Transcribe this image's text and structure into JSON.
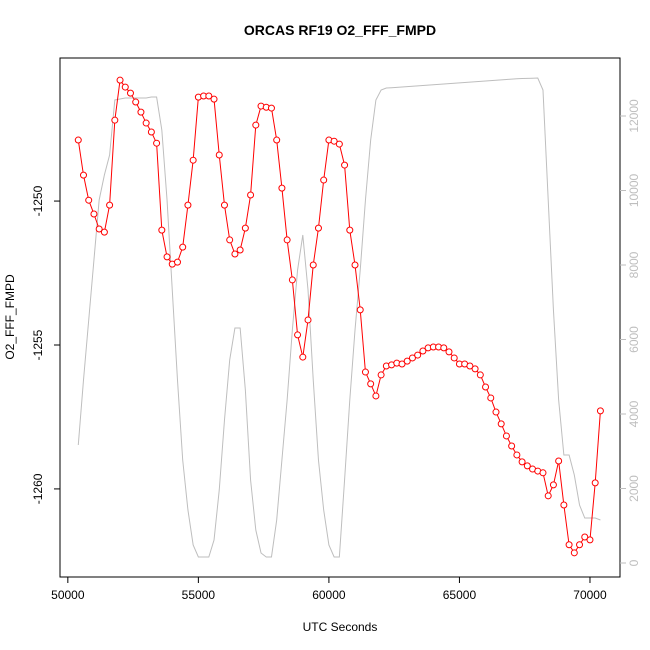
{
  "chart_data": {
    "type": "line",
    "title": "ORCAS RF19 O2_FFF_FMPD",
    "xlabel": "UTC Seconds",
    "ylabel": "O2_FFF_FMPD",
    "x": [
      50400,
      50600,
      50800,
      51000,
      51200,
      51400,
      51600,
      51800,
      52000,
      52200,
      52400,
      52600,
      52800,
      53000,
      53200,
      53400,
      53600,
      53800,
      54000,
      54200,
      54400,
      54600,
      54800,
      55000,
      55200,
      55400,
      55600,
      55800,
      56000,
      56200,
      56400,
      56600,
      56800,
      57000,
      57200,
      57400,
      57600,
      57800,
      58000,
      58200,
      58400,
      58600,
      58800,
      59000,
      59200,
      59400,
      59600,
      59800,
      60000,
      60200,
      60400,
      60600,
      60800,
      61000,
      61200,
      61400,
      61600,
      61800,
      62000,
      62200,
      62400,
      62600,
      62800,
      63000,
      63200,
      63400,
      63600,
      63800,
      64000,
      64200,
      64400,
      64600,
      64800,
      65000,
      65200,
      65400,
      65600,
      65800,
      66000,
      66200,
      66400,
      66600,
      66800,
      67000,
      67200,
      67400,
      67600,
      67800,
      68000,
      68200,
      68400,
      68600,
      68800,
      69000,
      69200,
      69400,
      69600,
      69800,
      70000,
      70200,
      70400
    ],
    "series": [
      {
        "color": "#ff0000",
        "marker": "open-circle",
        "values": [
          -1247.88,
          -1249.1,
          -1249.97,
          -1250.45,
          -1250.97,
          -1251.08,
          -1250.14,
          -1247.19,
          -1245.8,
          -1246.04,
          -1246.25,
          -1246.56,
          -1246.91,
          -1247.29,
          -1247.6,
          -1247.99,
          -1251.01,
          -1251.94,
          -1252.19,
          -1252.12,
          -1251.6,
          -1250.14,
          -1248.58,
          -1246.39,
          -1246.35,
          -1246.35,
          -1246.46,
          -1248.4,
          -1250.14,
          -1251.35,
          -1251.84,
          -1251.7,
          -1250.94,
          -1249.79,
          -1247.36,
          -1246.7,
          -1246.74,
          -1246.77,
          -1247.88,
          -1249.55,
          -1251.35,
          -1252.74,
          -1254.65,
          -1255.42,
          -1254.13,
          -1252.22,
          -1250.94,
          -1249.27,
          -1247.88,
          -1247.92,
          -1248.02,
          -1248.75,
          -1251.01,
          -1252.22,
          -1253.78,
          -1255.94,
          -1256.35,
          -1256.77,
          -1256.04,
          -1255.73,
          -1255.69,
          -1255.63,
          -1255.66,
          -1255.56,
          -1255.45,
          -1255.35,
          -1255.21,
          -1255.1,
          -1255.07,
          -1255.07,
          -1255.1,
          -1255.24,
          -1255.45,
          -1255.66,
          -1255.66,
          -1255.73,
          -1255.83,
          -1256.04,
          -1256.46,
          -1256.84,
          -1257.33,
          -1257.74,
          -1258.16,
          -1258.51,
          -1258.82,
          -1259.06,
          -1259.2,
          -1259.31,
          -1259.38,
          -1259.44,
          -1260.24,
          -1259.86,
          -1259.03,
          -1260.56,
          -1261.94,
          -1262.22,
          -1261.94,
          -1261.67,
          -1261.77,
          -1259.79,
          -1257.29
        ]
      },
      {
        "color": "#bebebe",
        "axis": "y2",
        "values": [
          3168,
          4913,
          6523,
          8134,
          9745,
          10416,
          10953,
          12430,
          12456,
          12483,
          12483,
          12483,
          12483,
          12483,
          12510,
          12510,
          11624,
          9745,
          7329,
          4913,
          2765,
          1423,
          483,
          161,
          161,
          161,
          617,
          1960,
          3839,
          5450,
          6309,
          6309,
          4644,
          2228,
          886,
          268,
          161,
          161,
          1154,
          2765,
          4376,
          6255,
          7866,
          8805,
          7329,
          4913,
          2765,
          1423,
          483,
          161,
          161,
          2228,
          4376,
          6255,
          7866,
          9745,
          11356,
          12430,
          12698,
          12752,
          12760,
          12770,
          12780,
          12790,
          12800,
          12810,
          12820,
          12830,
          12840,
          12850,
          12860,
          12870,
          12880,
          12890,
          12900,
          12910,
          12920,
          12930,
          12940,
          12950,
          12960,
          12970,
          12980,
          12990,
          13000,
          13005,
          13010,
          13015,
          13020,
          12698,
          9745,
          6792,
          4376,
          2899,
          2899,
          2362,
          1557,
          1208,
          1208,
          1208,
          1154
        ]
      }
    ],
    "xlim": [
      49700,
      71150
    ],
    "ylim": [
      -1263.06,
      -1245.03
    ],
    "y2lim": [
      -376,
      13557
    ],
    "xticks": [
      50000,
      55000,
      60000,
      65000,
      70000
    ],
    "yticks": [
      -1260,
      -1255,
      -1250
    ],
    "y2ticks": [
      0,
      2000,
      4000,
      6000,
      8000,
      10000,
      12000
    ],
    "y2tick_color": "#bebebe"
  }
}
